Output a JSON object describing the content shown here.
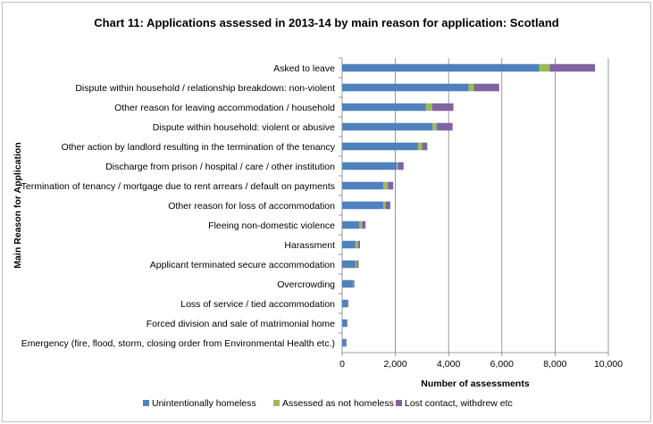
{
  "chart_data": {
    "type": "bar",
    "orientation": "horizontal",
    "stacked": true,
    "title": "Chart 11:  Applications assessed in 2013-14 by main reason for application:  Scotland",
    "xlabel": "Number of assessments",
    "ylabel": "Main Reason for Application",
    "xlim": [
      0,
      10000
    ],
    "xticks": [
      "0",
      "2,000",
      "4,000",
      "6,000",
      "8,000",
      "10,000"
    ],
    "grid": "vertical",
    "legend_position": "bottom",
    "categories": [
      "Asked to leave",
      "Dispute within household / relationship breakdown: non-violent",
      "Other reason for leaving accommodation / household",
      "Dispute within household: violent or abusive",
      "Other action by landlord resulting in the termination of the tenancy",
      "Discharge from prison / hospital / care / other institution",
      "Termination of tenancy / mortgage due to rent arrears / default on payments",
      "Other reason for loss of accommodation",
      "Fleeing non-domestic violence",
      "Harassment",
      "Applicant terminated secure accommodation",
      "Overcrowding",
      "Loss of service / tied accommodation",
      "Forced division and sale of matrimonial home",
      "Emergency (fire, flood, storm, closing order from Environmental Health etc.)"
    ],
    "series": [
      {
        "name": "Unintentionally homeless",
        "color": "#4f81bd",
        "values": [
          7400,
          4750,
          3150,
          3400,
          2850,
          2050,
          1550,
          1550,
          650,
          500,
          500,
          400,
          200,
          170,
          140
        ]
      },
      {
        "name": "Assessed as not homeless",
        "color": "#9bbb59",
        "values": [
          400,
          200,
          230,
          150,
          150,
          40,
          170,
          80,
          100,
          100,
          50,
          20,
          20,
          10,
          10
        ]
      },
      {
        "name": "Lost contact, withdrew etc",
        "color": "#8064a2",
        "values": [
          1700,
          950,
          800,
          600,
          200,
          220,
          200,
          180,
          130,
          70,
          70,
          40,
          20,
          20,
          20
        ]
      }
    ]
  }
}
